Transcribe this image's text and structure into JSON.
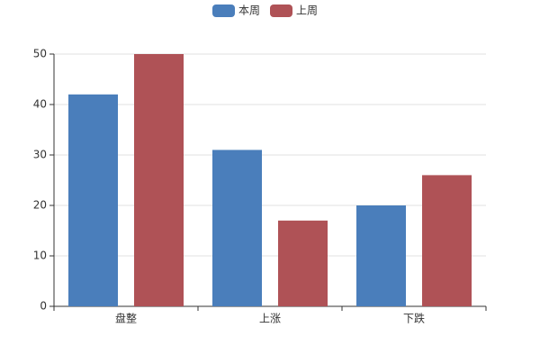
{
  "chart_data": {
    "type": "bar",
    "categories": [
      "盘整",
      "上涨",
      "下跌"
    ],
    "series": [
      {
        "name": "本周",
        "color": "#4a7ebb",
        "values": [
          42,
          31,
          20
        ]
      },
      {
        "name": "上周",
        "color": "#af5256",
        "values": [
          50,
          17,
          26
        ]
      }
    ],
    "ylim": [
      0,
      50
    ],
    "yticks": [
      0,
      10,
      20,
      30,
      40,
      50
    ],
    "grid": true,
    "legend": "top"
  }
}
